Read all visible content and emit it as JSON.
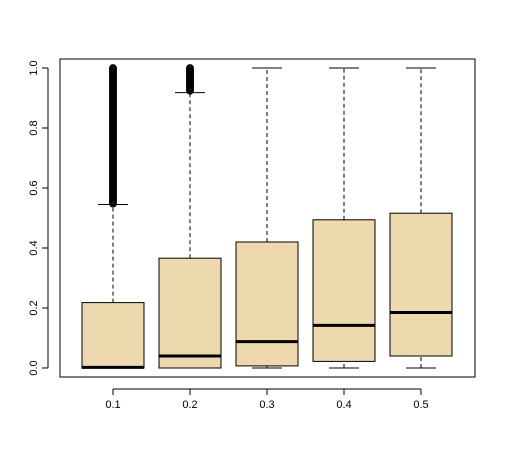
{
  "chart_data": {
    "type": "boxplot",
    "title": "",
    "xlabel": "",
    "ylabel": "",
    "ylim": [
      -0.03,
      1.03
    ],
    "yticks": [
      "0.0",
      "0.2",
      "0.4",
      "0.6",
      "0.8",
      "1.0"
    ],
    "ytick_values": [
      0.0,
      0.2,
      0.4,
      0.6,
      0.8,
      1.0
    ],
    "categories": [
      "0.1",
      "0.2",
      "0.3",
      "0.4",
      "0.5"
    ],
    "boxes": [
      {
        "category": "0.1",
        "whisker_low": 0.0,
        "q1": 0.0,
        "median": 0.002,
        "q3": 0.218,
        "whisker_high": 0.545,
        "outliers_range": [
          0.548,
          1.0
        ]
      },
      {
        "category": "0.2",
        "whisker_low": 0.0,
        "q1": 0.0,
        "median": 0.04,
        "q3": 0.366,
        "whisker_high": 0.918,
        "outliers_range": [
          0.92,
          1.0
        ]
      },
      {
        "category": "0.3",
        "whisker_low": 0.0,
        "q1": 0.007,
        "median": 0.088,
        "q3": 0.42,
        "whisker_high": 1.0,
        "outliers_range": null
      },
      {
        "category": "0.4",
        "whisker_low": 0.0,
        "q1": 0.022,
        "median": 0.142,
        "q3": 0.494,
        "whisker_high": 1.0,
        "outliers_range": null
      },
      {
        "category": "0.5",
        "whisker_low": 0.0,
        "q1": 0.04,
        "median": 0.185,
        "q3": 0.516,
        "whisker_high": 1.0,
        "outliers_range": null
      }
    ],
    "colors": {
      "box_fill": "#EED8AE",
      "stroke": "#000000",
      "background": "#FFFFFF"
    },
    "grid": false,
    "legend": "none"
  }
}
